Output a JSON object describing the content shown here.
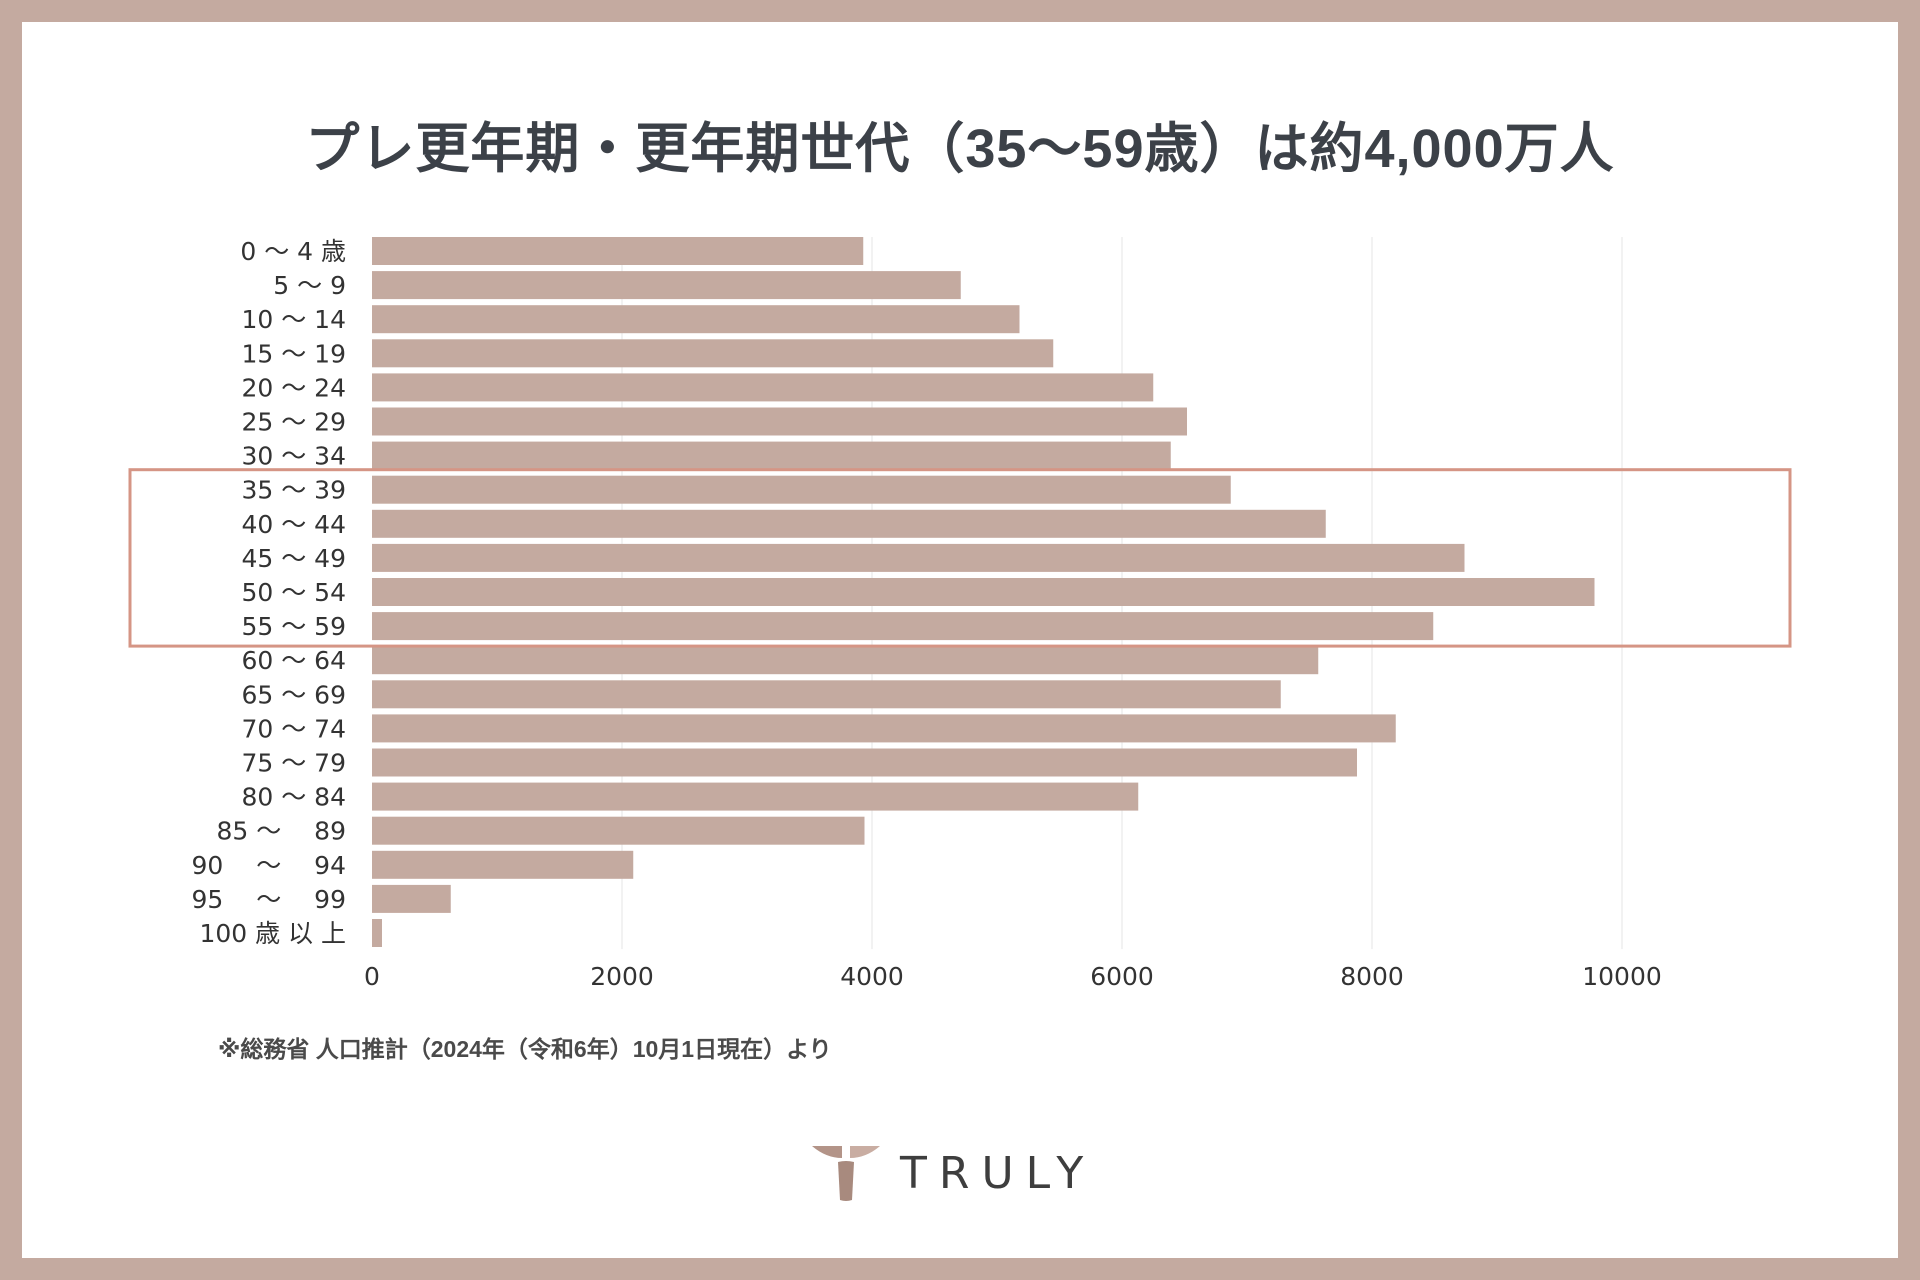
{
  "title": "プレ更年期・更年期世代（35〜59歳）は約4,000万人",
  "source_note": "※総務省 人口推計（2024年（令和6年）10月1日現在）より",
  "brand": {
    "name": "TRULY",
    "color": "#c4aaa0"
  },
  "colors": {
    "bar": "#c4aaa0",
    "highlight_box": "#d59585",
    "frame": "#c4aaa0",
    "grid": "#e6e6e6"
  },
  "chart_data": {
    "type": "bar",
    "orientation": "horizontal",
    "categories": [
      "0 〜 4 歳",
      "5 〜 9",
      "10 〜 14",
      "15 〜 19",
      "20 〜 24",
      "25 〜 29",
      "30 〜 34",
      "35 〜 39",
      "40 〜 44",
      "45 〜 49",
      "50 〜 54",
      "55 〜 59",
      "60 〜 64",
      "65 〜 69",
      "70 〜 74",
      "75 〜 79",
      "80 〜 84",
      "85 〜 　89",
      "90 　〜 　94",
      "95 　〜 　99",
      "100 歳 以 上"
    ],
    "values": [
      3930,
      4710,
      5180,
      5450,
      6250,
      6520,
      6390,
      6870,
      7630,
      8740,
      9780,
      8490,
      7570,
      7270,
      8190,
      7880,
      6130,
      3940,
      2090,
      630,
      80
    ],
    "xlim": [
      0,
      11300
    ],
    "xticks": [
      0,
      2000,
      4000,
      6000,
      8000,
      10000
    ],
    "grid": true,
    "highlight": {
      "from": "35 〜 39",
      "to": "55 〜 59"
    }
  }
}
